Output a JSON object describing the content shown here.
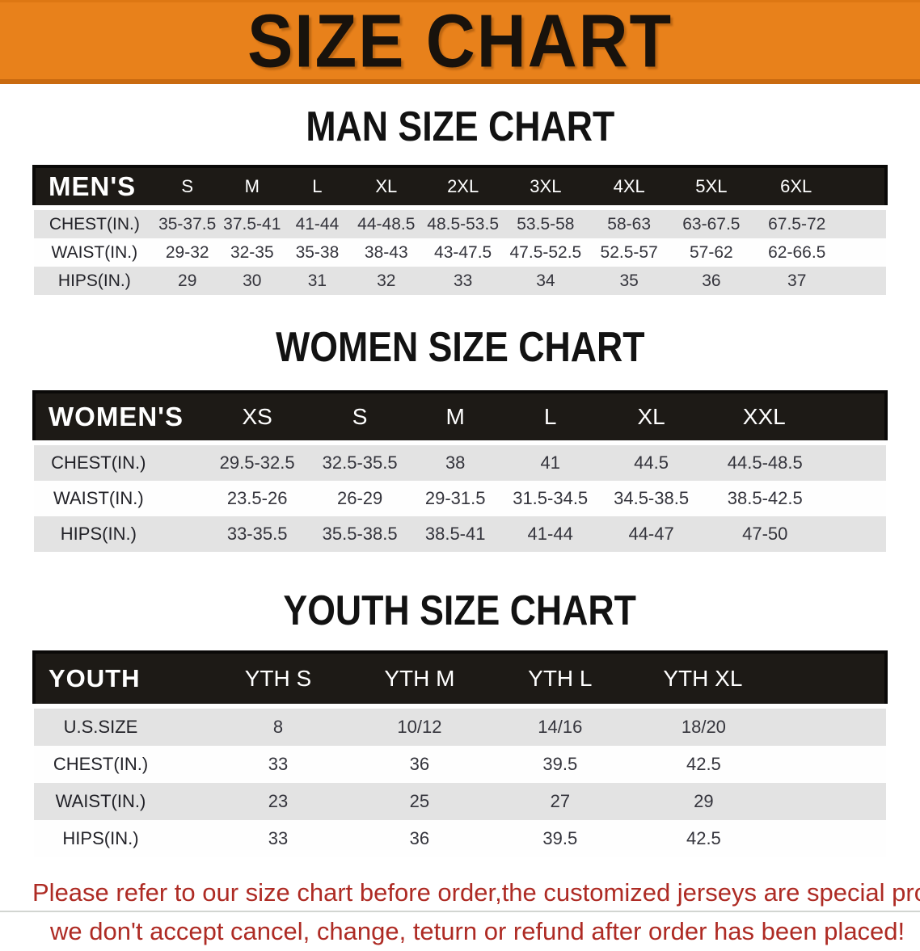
{
  "banner": {
    "title": "SIZE CHART"
  },
  "colors": {
    "banner_bg": "#E8811B",
    "banner_text": "#18120C",
    "table_header_bg": "#1D1A16",
    "table_header_text": "#FFFFFF",
    "row_stripe_gray": "#E3E3E3",
    "row_stripe_white": "#FFFFFF",
    "footer_red": "#AE2B24"
  },
  "sections": [
    {
      "id": "men",
      "heading": "MAN SIZE CHART",
      "table": {
        "label": "MEN'S",
        "columns": [
          "S",
          "M",
          "L",
          "XL",
          "2XL",
          "3XL",
          "4XL",
          "5XL",
          "6XL"
        ],
        "rows": [
          {
            "label": "CHEST(IN.)",
            "values": [
              "35-37.5",
              "37.5-41",
              "41-44",
              "44-48.5",
              "48.5-53.5",
              "53.5-58",
              "58-63",
              "63-67.5",
              "67.5-72"
            ]
          },
          {
            "label": "WAIST(IN.)",
            "values": [
              "29-32",
              "32-35",
              "35-38",
              "38-43",
              "43-47.5",
              "47.5-52.5",
              "52.5-57",
              "57-62",
              "62-66.5"
            ]
          },
          {
            "label": "HIPS(IN.)",
            "values": [
              "29",
              "30",
              "31",
              "32",
              "33",
              "34",
              "35",
              "36",
              "37"
            ]
          }
        ]
      }
    },
    {
      "id": "women",
      "heading": "WOMEN SIZE CHART",
      "table": {
        "label": "WOMEN'S",
        "columns": [
          "XS",
          "S",
          "M",
          "L",
          "XL",
          "XXL"
        ],
        "rows": [
          {
            "label": "CHEST(IN.)",
            "values": [
              "29.5-32.5",
              "32.5-35.5",
              "38",
              "41",
              "44.5",
              "44.5-48.5"
            ]
          },
          {
            "label": "WAIST(IN.)",
            "values": [
              "23.5-26",
              "26-29",
              "29-31.5",
              "31.5-34.5",
              "34.5-38.5",
              "38.5-42.5"
            ]
          },
          {
            "label": "HIPS(IN.)",
            "values": [
              "33-35.5",
              "35.5-38.5",
              "38.5-41",
              "41-44",
              "44-47",
              "47-50"
            ]
          }
        ]
      }
    },
    {
      "id": "youth",
      "heading": "YOUTH SIZE CHART",
      "table": {
        "label": "YOUTH",
        "columns": [
          "YTH S",
          "YTH M",
          "YTH L",
          "YTH XL"
        ],
        "rows": [
          {
            "label": "U.S.SIZE",
            "values": [
              "8",
              "10/12",
              "14/16",
              "18/20"
            ]
          },
          {
            "label": "CHEST(IN.)",
            "values": [
              "33",
              "36",
              "39.5",
              "42.5"
            ]
          },
          {
            "label": "WAIST(IN.)",
            "values": [
              "23",
              "25",
              "27",
              "29"
            ]
          },
          {
            "label": "HIPS(IN.)",
            "values": [
              "33",
              "36",
              "39.5",
              "42.5"
            ]
          }
        ]
      }
    }
  ],
  "footer": {
    "lines": [
      "Please refer to our size chart before order,the customized jerseys are special products,",
      "we don't accept cancel, change, teturn or refund after order has been placed!"
    ]
  }
}
